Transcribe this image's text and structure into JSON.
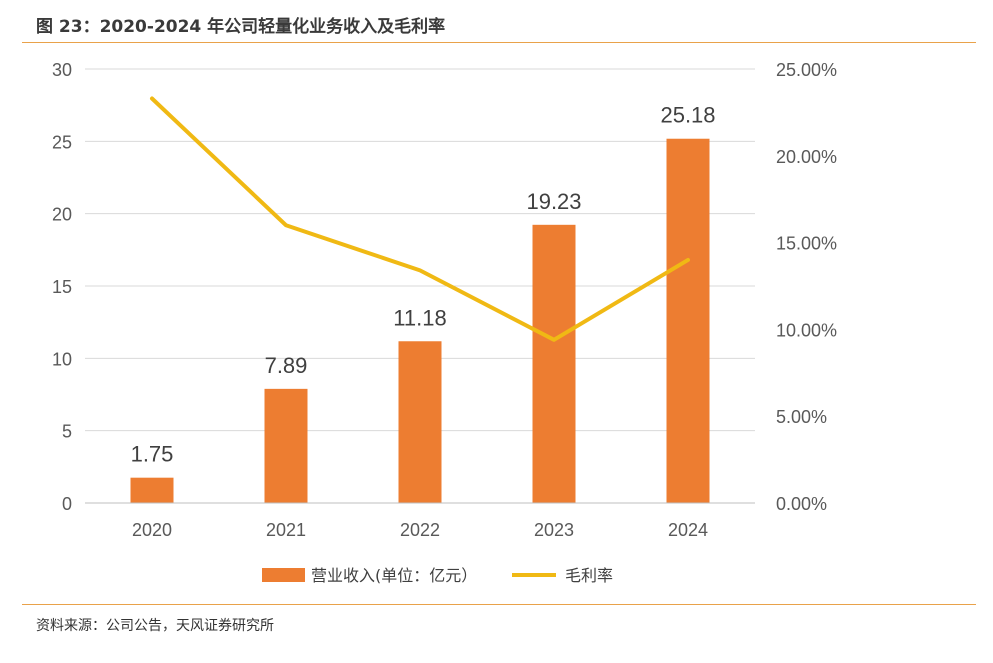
{
  "title": "图 23：2020-2024 年公司轻量化业务收入及毛利率",
  "source": "资料来源：公司公告，天风证券研究所",
  "colors": {
    "bar": "#ed7d31",
    "line": "#f0b914",
    "rule": "#e9a24a"
  },
  "chart_data": {
    "type": "bar",
    "categories": [
      "2020",
      "2021",
      "2022",
      "2023",
      "2024"
    ],
    "series": [
      {
        "name": "营业收入(单位：亿元）",
        "type": "bar",
        "axis": "left",
        "values": [
          1.75,
          7.89,
          11.18,
          19.23,
          25.18
        ],
        "labels": [
          "1.75",
          "7.89",
          "11.18",
          "19.23",
          "25.18"
        ]
      },
      {
        "name": "毛利率",
        "type": "line",
        "axis": "right",
        "values": [
          23.3,
          16.0,
          13.4,
          9.4,
          14.0
        ]
      }
    ],
    "y_left": {
      "ylim": [
        0,
        30
      ],
      "ticks": [
        0,
        5,
        10,
        15,
        20,
        25,
        30
      ],
      "tick_labels": [
        "0",
        "5",
        "10",
        "15",
        "20",
        "25",
        "30"
      ]
    },
    "y_right": {
      "ylim": [
        0,
        25
      ],
      "ticks": [
        0,
        5,
        10,
        15,
        20,
        25
      ],
      "tick_labels": [
        "0.00%",
        "5.00%",
        "10.00%",
        "15.00%",
        "20.00%",
        "25.00%"
      ]
    },
    "grid": true,
    "legend": "bottom"
  }
}
